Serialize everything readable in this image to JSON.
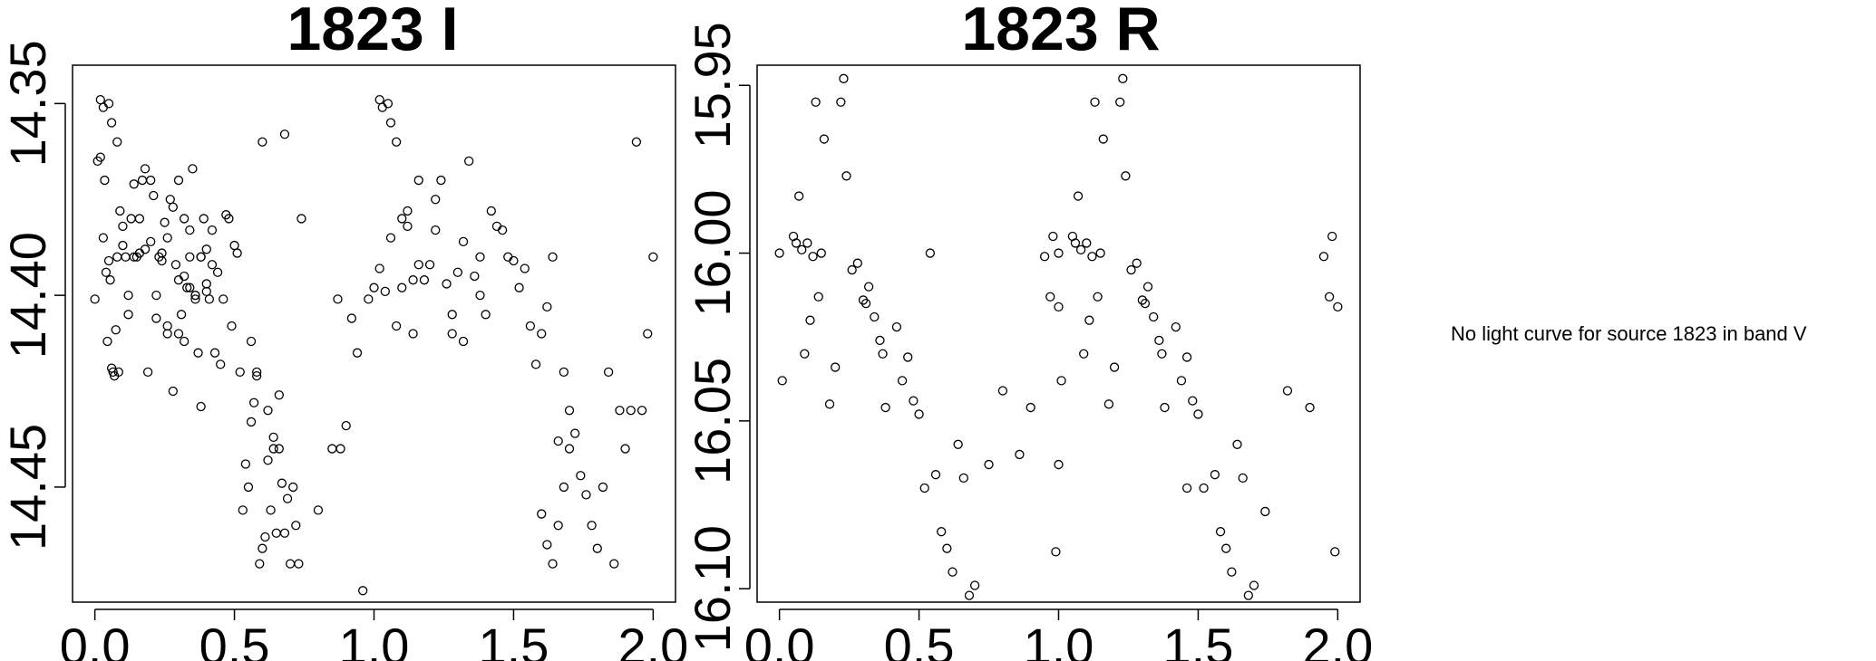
{
  "note": "No light curve for source 1823 in band V",
  "chart_data": [
    {
      "type": "scatter",
      "title": "1823 I",
      "xlim": [
        -0.08,
        2.08
      ],
      "ylim": [
        14.48,
        14.34
      ],
      "y_reversed": true,
      "x_ticks": [
        "0.0",
        "0.5",
        "1.0",
        "1.5",
        "2.0"
      ],
      "y_ticks": [
        "14.35",
        "14.40",
        "14.45"
      ],
      "x_tick_values": [
        0,
        0.5,
        1,
        1.5,
        2
      ],
      "y_tick_values": [
        14.35,
        14.4,
        14.45
      ],
      "points": [
        [
          0.0,
          14.401
        ],
        [
          0.01,
          14.365
        ],
        [
          0.02,
          14.364
        ],
        [
          0.03,
          14.385
        ],
        [
          0.035,
          14.37
        ],
        [
          0.04,
          14.394
        ],
        [
          0.045,
          14.412
        ],
        [
          0.05,
          14.391
        ],
        [
          0.055,
          14.396
        ],
        [
          0.06,
          14.419
        ],
        [
          0.065,
          14.42
        ],
        [
          0.07,
          14.421
        ],
        [
          0.075,
          14.409
        ],
        [
          0.08,
          14.39
        ],
        [
          0.085,
          14.42
        ],
        [
          0.09,
          14.378
        ],
        [
          0.1,
          14.382
        ],
        [
          0.11,
          14.39
        ],
        [
          0.12,
          14.405
        ],
        [
          0.13,
          14.38
        ],
        [
          0.14,
          14.371
        ],
        [
          0.15,
          14.39
        ],
        [
          0.16,
          14.389
        ],
        [
          0.17,
          14.37
        ],
        [
          0.18,
          14.388
        ],
        [
          0.19,
          14.42
        ],
        [
          0.2,
          14.386
        ],
        [
          0.21,
          14.374
        ],
        [
          0.22,
          14.4
        ],
        [
          0.23,
          14.39
        ],
        [
          0.24,
          14.391
        ],
        [
          0.25,
          14.381
        ],
        [
          0.26,
          14.408
        ],
        [
          0.27,
          14.375
        ],
        [
          0.28,
          14.425
        ],
        [
          0.29,
          14.392
        ],
        [
          0.3,
          14.396
        ],
        [
          0.31,
          14.405
        ],
        [
          0.32,
          14.395
        ],
        [
          0.33,
          14.398
        ],
        [
          0.34,
          14.383
        ],
        [
          0.35,
          14.367
        ],
        [
          0.36,
          14.401
        ],
        [
          0.37,
          14.415
        ],
        [
          0.38,
          14.429
        ],
        [
          0.39,
          14.38
        ],
        [
          0.4,
          14.397
        ],
        [
          0.41,
          14.401
        ],
        [
          0.42,
          14.383
        ],
        [
          0.43,
          14.415
        ],
        [
          0.44,
          14.394
        ],
        [
          0.45,
          14.418
        ],
        [
          0.46,
          14.401
        ],
        [
          0.47,
          14.379
        ],
        [
          0.48,
          14.38
        ],
        [
          0.49,
          14.408
        ],
        [
          0.5,
          14.387
        ],
        [
          0.51,
          14.389
        ],
        [
          0.52,
          14.42
        ],
        [
          0.53,
          14.456
        ],
        [
          0.54,
          14.444
        ],
        [
          0.55,
          14.45
        ],
        [
          0.56,
          14.433
        ],
        [
          0.57,
          14.428
        ],
        [
          0.58,
          14.421
        ],
        [
          0.59,
          14.47
        ],
        [
          0.6,
          14.466
        ],
        [
          0.61,
          14.463
        ],
        [
          0.62,
          14.443
        ],
        [
          0.63,
          14.456
        ],
        [
          0.64,
          14.437
        ],
        [
          0.65,
          14.462
        ],
        [
          0.66,
          14.426
        ],
        [
          0.67,
          14.449
        ],
        [
          0.68,
          14.462
        ],
        [
          0.69,
          14.453
        ],
        [
          0.7,
          14.47
        ],
        [
          0.71,
          14.45
        ],
        [
          0.72,
          14.46
        ],
        [
          0.73,
          14.47
        ],
        [
          0.26,
          14.385
        ],
        [
          0.28,
          14.377
        ],
        [
          0.3,
          14.41
        ],
        [
          0.32,
          14.412
        ],
        [
          0.34,
          14.398
        ],
        [
          0.36,
          14.4
        ],
        [
          0.38,
          14.39
        ],
        [
          0.4,
          14.399
        ],
        [
          0.42,
          14.392
        ],
        [
          0.02,
          14.349
        ],
        [
          0.03,
          14.351
        ],
        [
          0.05,
          14.35
        ],
        [
          0.06,
          14.355
        ],
        [
          0.08,
          14.36
        ],
        [
          0.1,
          14.387
        ],
        [
          0.12,
          14.4
        ],
        [
          0.14,
          14.39
        ],
        [
          0.16,
          14.38
        ],
        [
          0.18,
          14.367
        ],
        [
          0.2,
          14.37
        ],
        [
          0.22,
          14.406
        ],
        [
          0.24,
          14.389
        ],
        [
          0.26,
          14.41
        ],
        [
          0.3,
          14.37
        ],
        [
          0.32,
          14.38
        ],
        [
          0.34,
          14.39
        ],
        [
          0.36,
          14.4
        ],
        [
          0.38,
          14.39
        ],
        [
          0.4,
          14.388
        ],
        [
          0.56,
          14.412
        ],
        [
          0.58,
          14.42
        ],
        [
          0.6,
          14.36
        ],
        [
          0.62,
          14.43
        ],
        [
          0.64,
          14.44
        ],
        [
          0.66,
          14.44
        ],
        [
          0.68,
          14.358
        ],
        [
          0.74,
          14.38
        ],
        [
          0.8,
          14.456
        ],
        [
          0.85,
          14.44
        ],
        [
          0.87,
          14.401
        ],
        [
          0.88,
          14.44
        ],
        [
          0.9,
          14.434
        ],
        [
          0.92,
          14.406
        ],
        [
          0.94,
          14.415
        ],
        [
          0.96,
          14.477
        ],
        [
          0.98,
          14.401
        ],
        [
          1.0,
          14.398
        ],
        [
          1.02,
          14.393
        ],
        [
          1.04,
          14.399
        ],
        [
          1.06,
          14.385
        ],
        [
          1.08,
          14.408
        ],
        [
          1.1,
          14.398
        ],
        [
          1.12,
          14.378
        ],
        [
          1.14,
          14.396
        ],
        [
          1.16,
          14.392
        ],
        [
          1.18,
          14.396
        ],
        [
          1.2,
          14.392
        ],
        [
          1.22,
          14.383
        ],
        [
          1.24,
          14.37
        ],
        [
          1.26,
          14.397
        ],
        [
          1.28,
          14.405
        ],
        [
          1.3,
          14.394
        ],
        [
          1.32,
          14.386
        ],
        [
          1.34,
          14.365
        ],
        [
          1.36,
          14.395
        ],
        [
          1.38,
          14.39
        ],
        [
          1.4,
          14.405
        ],
        [
          1.42,
          14.378
        ],
        [
          1.44,
          14.382
        ],
        [
          1.46,
          14.383
        ],
        [
          1.48,
          14.39
        ],
        [
          1.5,
          14.391
        ],
        [
          1.52,
          14.398
        ],
        [
          1.54,
          14.393
        ],
        [
          1.56,
          14.408
        ],
        [
          1.58,
          14.418
        ],
        [
          1.6,
          14.41
        ],
        [
          1.62,
          14.403
        ],
        [
          1.64,
          14.39
        ],
        [
          1.66,
          14.438
        ],
        [
          1.68,
          14.42
        ],
        [
          1.7,
          14.43
        ],
        [
          1.72,
          14.436
        ],
        [
          1.74,
          14.447
        ],
        [
          1.76,
          14.452
        ],
        [
          1.78,
          14.46
        ],
        [
          1.8,
          14.466
        ],
        [
          1.82,
          14.45
        ],
        [
          1.84,
          14.42
        ],
        [
          1.86,
          14.47
        ],
        [
          1.88,
          14.43
        ],
        [
          1.9,
          14.44
        ],
        [
          1.92,
          14.43
        ],
        [
          1.94,
          14.36
        ],
        [
          1.96,
          14.43
        ],
        [
          1.98,
          14.41
        ],
        [
          2.0,
          14.39
        ],
        [
          1.02,
          14.349
        ],
        [
          1.03,
          14.351
        ],
        [
          1.05,
          14.35
        ],
        [
          1.06,
          14.355
        ],
        [
          1.08,
          14.36
        ],
        [
          1.1,
          14.38
        ],
        [
          1.12,
          14.382
        ],
        [
          1.14,
          14.41
        ],
        [
          1.16,
          14.37
        ],
        [
          1.22,
          14.375
        ],
        [
          1.28,
          14.41
        ],
        [
          1.32,
          14.412
        ],
        [
          1.38,
          14.4
        ],
        [
          1.6,
          14.457
        ],
        [
          1.62,
          14.465
        ],
        [
          1.64,
          14.47
        ],
        [
          1.66,
          14.46
        ],
        [
          1.68,
          14.45
        ],
        [
          1.7,
          14.44
        ]
      ]
    },
    {
      "type": "scatter",
      "title": "1823 R",
      "xlim": [
        -0.08,
        2.08
      ],
      "ylim": [
        16.104,
        15.944
      ],
      "y_reversed": true,
      "x_ticks": [
        "0.0",
        "0.5",
        "1.0",
        "1.5",
        "2.0"
      ],
      "y_ticks": [
        "15.95",
        "16.00",
        "16.05",
        "16.10"
      ],
      "x_tick_values": [
        0,
        0.5,
        1,
        1.5,
        2
      ],
      "y_tick_values": [
        15.95,
        16.0,
        16.05,
        16.1
      ],
      "points": [
        [
          0.0,
          16.0
        ],
        [
          0.01,
          16.038
        ],
        [
          0.05,
          15.995
        ],
        [
          0.06,
          15.997
        ],
        [
          0.07,
          15.983
        ],
        [
          0.08,
          15.999
        ],
        [
          0.09,
          16.03
        ],
        [
          0.1,
          15.997
        ],
        [
          0.11,
          16.02
        ],
        [
          0.12,
          16.001
        ],
        [
          0.13,
          15.955
        ],
        [
          0.14,
          16.013
        ],
        [
          0.15,
          16.0
        ],
        [
          0.16,
          15.966
        ],
        [
          0.18,
          16.045
        ],
        [
          0.2,
          16.034
        ],
        [
          0.22,
          15.955
        ],
        [
          0.23,
          15.948
        ],
        [
          0.24,
          15.977
        ],
        [
          0.26,
          16.005
        ],
        [
          0.28,
          16.003
        ],
        [
          0.3,
          16.014
        ],
        [
          0.31,
          16.015
        ],
        [
          0.32,
          16.01
        ],
        [
          0.34,
          16.019
        ],
        [
          0.36,
          16.026
        ],
        [
          0.37,
          16.03
        ],
        [
          0.38,
          16.046
        ],
        [
          0.42,
          16.022
        ],
        [
          0.44,
          16.038
        ],
        [
          0.46,
          16.031
        ],
        [
          0.48,
          16.044
        ],
        [
          0.5,
          16.048
        ],
        [
          0.52,
          16.07
        ],
        [
          0.54,
          16.0
        ],
        [
          0.56,
          16.066
        ],
        [
          0.58,
          16.083
        ],
        [
          0.6,
          16.088
        ],
        [
          0.62,
          16.095
        ],
        [
          0.64,
          16.057
        ],
        [
          0.66,
          16.067
        ],
        [
          0.68,
          16.102
        ],
        [
          0.7,
          16.099
        ],
        [
          1.0,
          16.0
        ],
        [
          1.01,
          16.038
        ],
        [
          1.05,
          15.995
        ],
        [
          1.06,
          15.997
        ],
        [
          1.07,
          15.983
        ],
        [
          1.08,
          15.999
        ],
        [
          1.09,
          16.03
        ],
        [
          1.1,
          15.997
        ],
        [
          1.11,
          16.02
        ],
        [
          1.12,
          16.001
        ],
        [
          1.13,
          15.955
        ],
        [
          1.14,
          16.013
        ],
        [
          1.15,
          16.0
        ],
        [
          1.16,
          15.966
        ],
        [
          1.18,
          16.045
        ],
        [
          1.2,
          16.034
        ],
        [
          1.22,
          15.955
        ],
        [
          1.23,
          15.948
        ],
        [
          1.24,
          15.977
        ],
        [
          1.26,
          16.005
        ],
        [
          1.28,
          16.003
        ],
        [
          1.3,
          16.014
        ],
        [
          1.31,
          16.015
        ],
        [
          1.32,
          16.01
        ],
        [
          1.34,
          16.019
        ],
        [
          1.36,
          16.026
        ],
        [
          1.37,
          16.03
        ],
        [
          1.38,
          16.046
        ],
        [
          1.42,
          16.022
        ],
        [
          1.44,
          16.038
        ],
        [
          1.46,
          16.031
        ],
        [
          1.48,
          16.044
        ],
        [
          1.5,
          16.048
        ],
        [
          1.52,
          16.07
        ],
        [
          1.56,
          16.066
        ],
        [
          1.58,
          16.083
        ],
        [
          1.6,
          16.088
        ],
        [
          1.62,
          16.095
        ],
        [
          1.64,
          16.057
        ],
        [
          1.66,
          16.067
        ],
        [
          1.68,
          16.102
        ],
        [
          1.7,
          16.099
        ],
        [
          1.82,
          16.041
        ],
        [
          1.9,
          16.046
        ],
        [
          1.95,
          16.001
        ],
        [
          1.97,
          16.013
        ],
        [
          1.98,
          15.995
        ],
        [
          2.0,
          16.016
        ],
        [
          1.99,
          16.089
        ],
        [
          0.8,
          16.041
        ],
        [
          0.9,
          16.046
        ],
        [
          0.95,
          16.001
        ],
        [
          0.97,
          16.013
        ],
        [
          0.98,
          15.995
        ],
        [
          1.0,
          16.016
        ],
        [
          0.99,
          16.089
        ],
        [
          0.75,
          16.063
        ],
        [
          0.86,
          16.06
        ],
        [
          1.46,
          16.07
        ],
        [
          1.74,
          16.077
        ],
        [
          1.0,
          16.063
        ]
      ]
    }
  ]
}
